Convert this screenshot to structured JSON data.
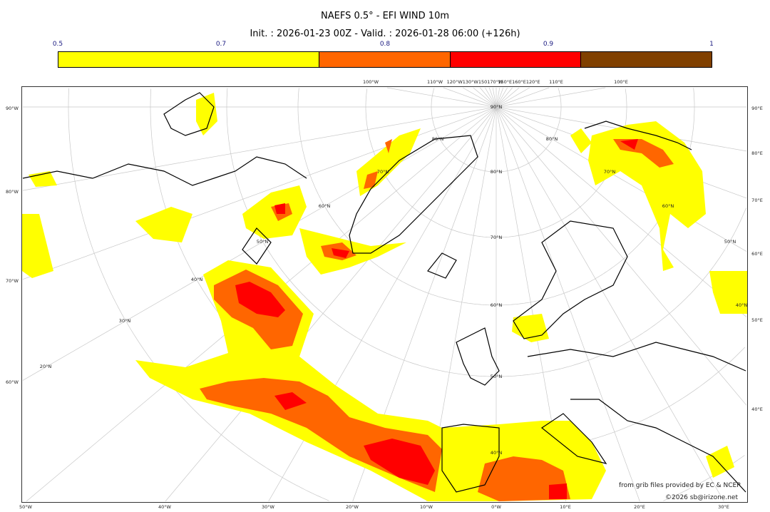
{
  "header": {
    "title": "NAEFS 0.5° - EFI WIND 10m",
    "subtitle": "Init. : 2026-01-23 00Z - Valid. : 2026-01-28 06:00 (+126h)"
  },
  "colorbar": {
    "ticks": [
      "0.5",
      "0.7",
      "0.8",
      "0.9",
      "1"
    ],
    "bins": [
      {
        "from": 0.5,
        "to": 0.7,
        "color": "#ffff00"
      },
      {
        "from": 0.7,
        "to": 0.8,
        "color": "#ff6600"
      },
      {
        "from": 0.8,
        "to": 0.9,
        "color": "#ff0000"
      },
      {
        "from": 0.9,
        "to": 1.0,
        "color": "#804000"
      }
    ]
  },
  "map": {
    "projection": "polar stereographic",
    "left_labels": [
      "90°W",
      "80°W",
      "70°W",
      "60°W"
    ],
    "right_labels": [
      "90°E",
      "80°E",
      "70°E",
      "60°E",
      "50°E",
      "40°E"
    ],
    "bottom_labels": [
      "50°W",
      "40°W",
      "30°W",
      "20°W",
      "10°W",
      "0°W",
      "10°E",
      "20°E",
      "30°E"
    ],
    "top_labels": [
      "100°W",
      "110°W",
      "120°W130°W150170°W",
      "150°E160°E120°E",
      "110°E",
      "100°E"
    ],
    "lat_labels": [
      "90°N",
      "80°N",
      "70°N",
      "60°N",
      "50°N",
      "40°N",
      "30°N",
      "20°N",
      "80°N",
      "70°N",
      "60°N",
      "50°N",
      "40°N",
      "80°N",
      "70°N",
      "60°N",
      "50°N",
      "40°N"
    ],
    "credits": [
      "from grib files provided by EC & NCEP",
      "©2026 sb@irizone.net"
    ]
  }
}
